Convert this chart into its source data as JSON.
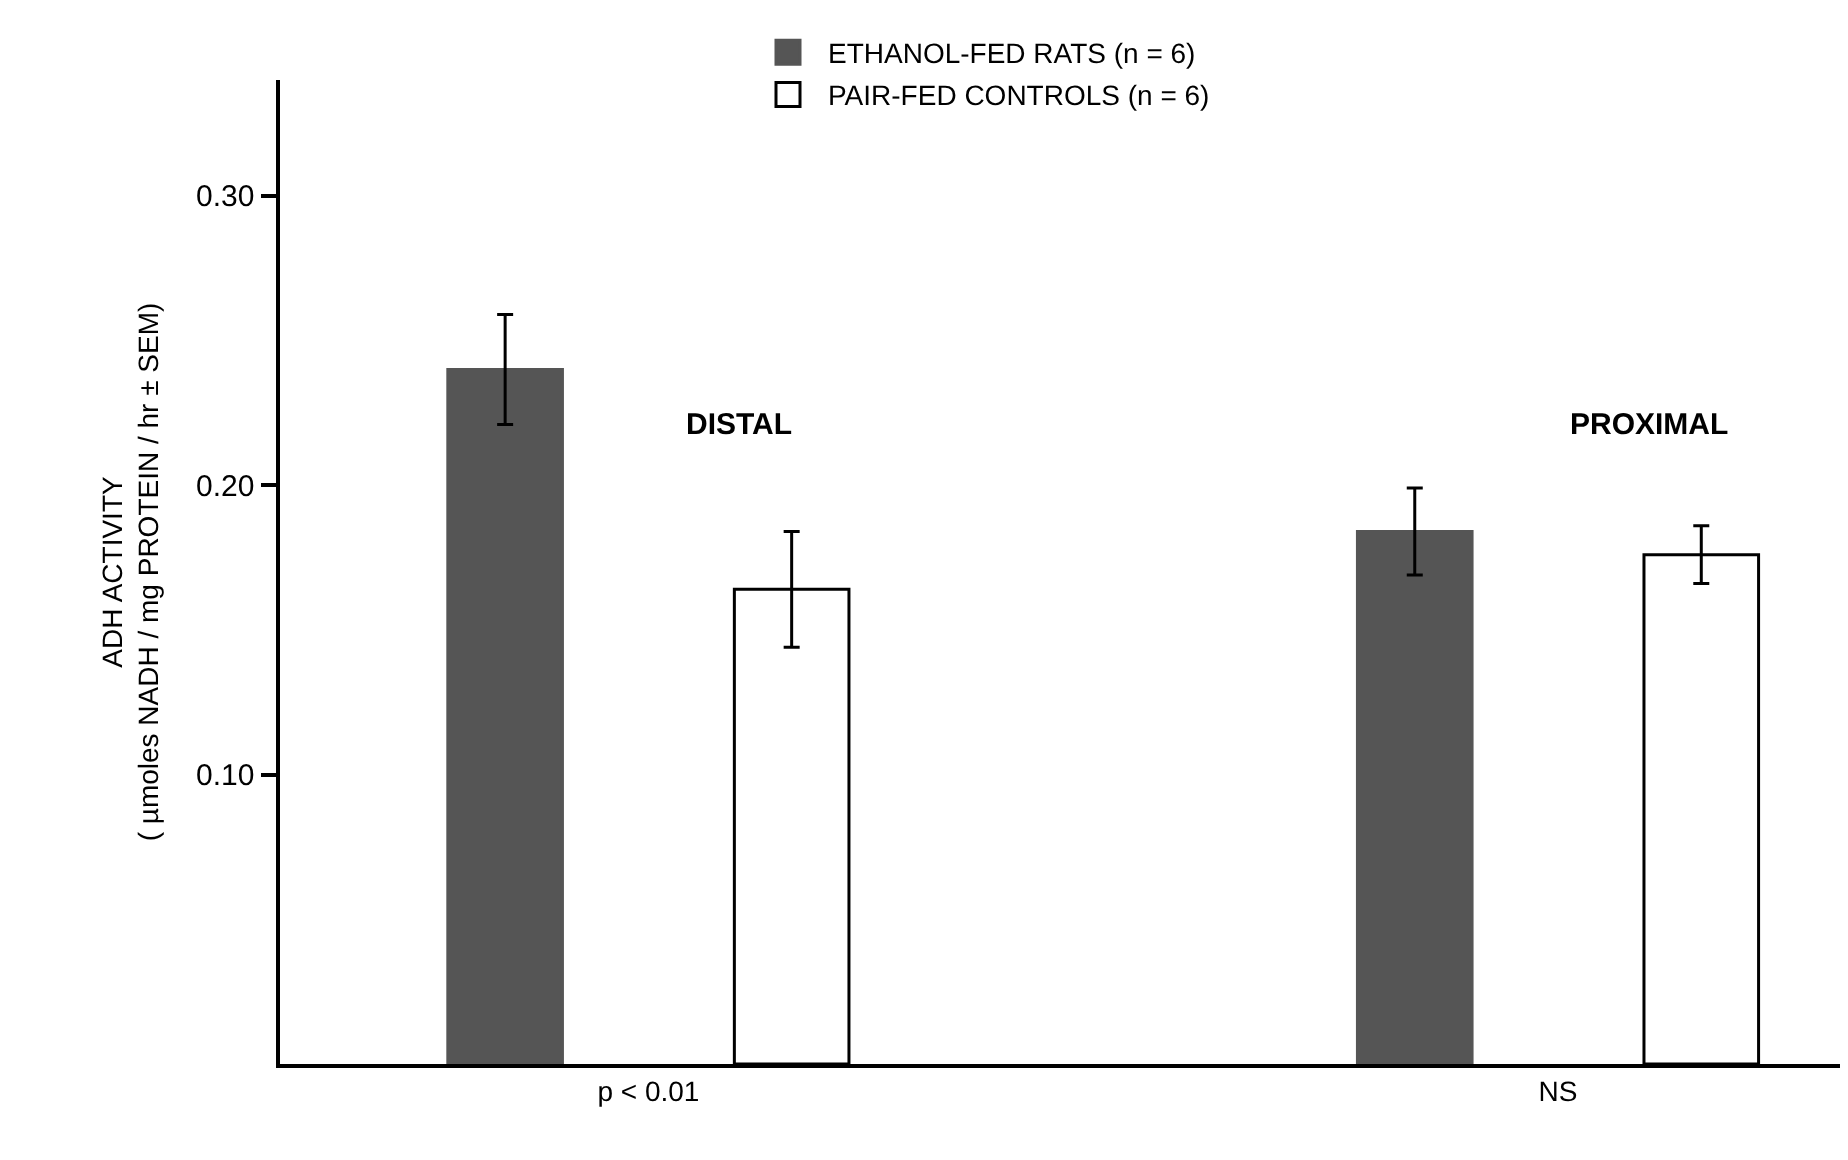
{
  "chart_data": {
    "type": "bar",
    "categories": [
      "p < 0.01",
      "NS"
    ],
    "ylabel": "ADH ACTIVITY\n( µmoles NADH / mg PROTEIN / hr ± SEM)",
    "series": [
      {
        "name": "ETHANOL-FED RATS (n = 6)",
        "color": "#555555",
        "values": [
          0.24,
          0.184
        ],
        "errors": [
          0.019,
          0.015
        ]
      },
      {
        "name": "PAIR-FED CONTROLS (n = 6)",
        "color": "#ffffff",
        "values": [
          0.164,
          0.176
        ],
        "errors": [
          0.02,
          0.01
        ]
      }
    ],
    "annotations": [
      "DISTAL",
      "PROXIMAL"
    ],
    "ylim": [
      0,
      0.34
    ],
    "yticks": [
      {
        "value": 0.1,
        "label": "0.10"
      },
      {
        "value": 0.2,
        "label": "0.20"
      },
      {
        "value": 0.3,
        "label": "0.30"
      }
    ],
    "grid": false,
    "legend": "top"
  }
}
